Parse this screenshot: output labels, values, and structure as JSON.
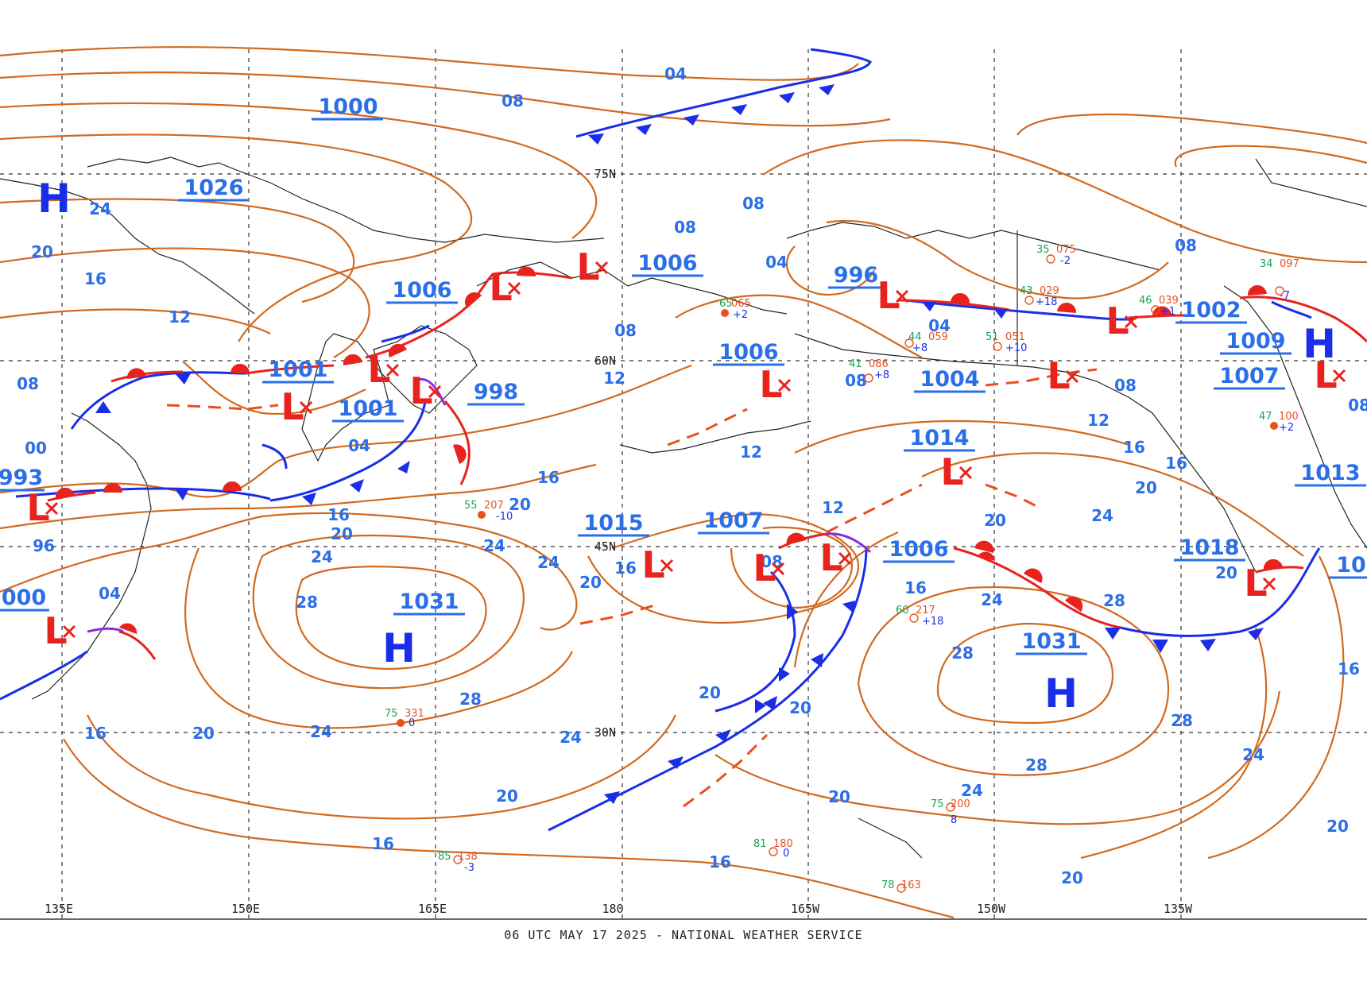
{
  "map": {
    "footer": "06 UTC MAY 17 2025 - NATIONAL WEATHER SERVICE",
    "longitude_labels": [
      "135E",
      "150E",
      "165E",
      "180",
      "165W",
      "150W",
      "135W"
    ],
    "latitude_labels": [
      "75N",
      "60N",
      "45N",
      "30N"
    ],
    "colors": {
      "isobar": "#d2691e",
      "label": "#2b6fe8",
      "high": "#1a2ee8",
      "low": "#e8231e",
      "cold_front": "#1a2ee8",
      "warm_front": "#e8231e",
      "occluded_front": "#8a2be2",
      "trough": "#e8501e"
    },
    "isobar_labels": [
      "04",
      "08",
      "12",
      "16",
      "20",
      "24",
      "28",
      "00",
      "96"
    ],
    "pressure_centers": [
      {
        "type": "H",
        "value": "1026"
      },
      {
        "type": "H",
        "value": "1031"
      },
      {
        "type": "H",
        "value": "1031"
      },
      {
        "type": "H",
        "value": "1009"
      },
      {
        "type": "L",
        "value": "1006"
      },
      {
        "type": "L",
        "value": "1006"
      },
      {
        "type": "L",
        "value": "1001"
      },
      {
        "type": "L",
        "value": "1001"
      },
      {
        "type": "L",
        "value": "998"
      },
      {
        "type": "L",
        "value": "996"
      },
      {
        "type": "L",
        "value": "1002"
      },
      {
        "type": "L",
        "value": "1004"
      },
      {
        "type": "L",
        "value": "1006"
      },
      {
        "type": "L",
        "value": "1007"
      },
      {
        "type": "L",
        "value": "1007"
      },
      {
        "type": "L",
        "value": "1014"
      },
      {
        "type": "L",
        "value": "1015"
      },
      {
        "type": "L",
        "value": "1006"
      },
      {
        "type": "L",
        "value": "1018"
      },
      {
        "type": "L",
        "value": "1013"
      },
      {
        "type": "L",
        "value": "993"
      },
      {
        "type": "L",
        "value": "1000"
      },
      {
        "type": "L",
        "value": "1000"
      }
    ],
    "labels": {
      "p1000_top": "1000",
      "p1026": "1026",
      "p1006_a": "1006",
      "p1006_b": "1006",
      "p1001_a": "1001",
      "p1001_b": "1001",
      "p998": "998",
      "p996": "996",
      "p1002": "1002",
      "p1009": "1009",
      "p1006_c": "1006",
      "p1004": "1004",
      "p1007_a": "1007",
      "p1014": "1014",
      "p1015": "1015",
      "p1007_b": "1007",
      "p1006_d": "1006",
      "p1018": "1018",
      "p1013": "1013",
      "p1031_a": "1031",
      "p1031_b": "1031",
      "p993": "993",
      "p000": "000",
      "p10_edge": "10",
      "H": "H",
      "L": "L"
    },
    "obs": [
      {
        "t": "47",
        "p": "100",
        "c": "+2"
      },
      {
        "t": "41",
        "p": "086",
        "c": "+8"
      },
      {
        "t": "44",
        "p": "059",
        "c": "+8"
      },
      {
        "t": "51",
        "p": "051",
        "c": "+10"
      },
      {
        "t": "75",
        "p": "331",
        "c": "0"
      },
      {
        "t": "85",
        "p": "138",
        "c": "-3"
      },
      {
        "t": "81",
        "p": "180",
        "c": "0"
      },
      {
        "t": "75",
        "p": "200",
        "c": "8"
      },
      {
        "t": "78",
        "p": "163",
        "c": ""
      },
      {
        "t": "60",
        "p": "217",
        "c": "+18"
      },
      {
        "t": "55",
        "p": "207",
        "c": "-10"
      },
      {
        "t": "65",
        "p": "065",
        "c": "+2"
      },
      {
        "t": "35",
        "p": "075",
        "c": "-2"
      },
      {
        "t": "43",
        "p": "029",
        "c": "+18"
      },
      {
        "t": "46",
        "p": "039",
        "c": "+1"
      },
      {
        "t": "34",
        "p": "097",
        "c": "-7"
      }
    ]
  }
}
